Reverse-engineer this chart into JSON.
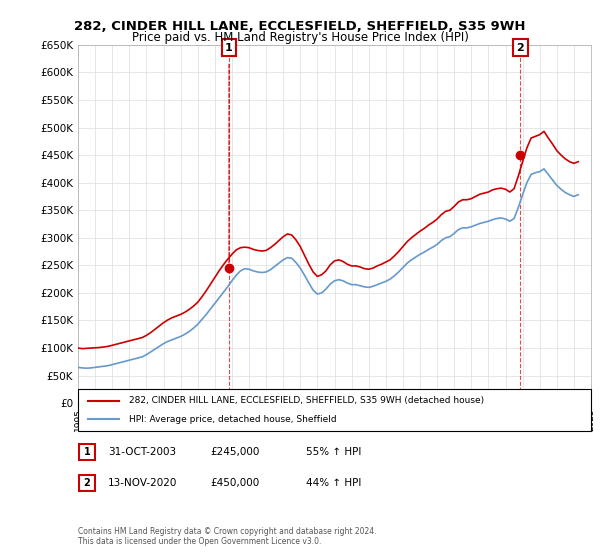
{
  "title": "282, CINDER HILL LANE, ECCLESFIELD, SHEFFIELD, S35 9WH",
  "subtitle": "Price paid vs. HM Land Registry's House Price Index (HPI)",
  "ylabel_ticks": [
    "£0",
    "£50K",
    "£100K",
    "£150K",
    "£200K",
    "£250K",
    "£300K",
    "£350K",
    "£400K",
    "£450K",
    "£500K",
    "£550K",
    "£600K",
    "£650K"
  ],
  "ytick_values": [
    0,
    50000,
    100000,
    150000,
    200000,
    250000,
    300000,
    350000,
    400000,
    450000,
    500000,
    550000,
    600000,
    650000
  ],
  "legend_line1": "282, CINDER HILL LANE, ECCLESFIELD, SHEFFIELD, S35 9WH (detached house)",
  "legend_line2": "HPI: Average price, detached house, Sheffield",
  "annotation1_label": "1",
  "annotation1_date": "31-OCT-2003",
  "annotation1_price": "£245,000",
  "annotation1_hpi": "55% ↑ HPI",
  "annotation2_label": "2",
  "annotation2_date": "13-NOV-2020",
  "annotation2_price": "£450,000",
  "annotation2_hpi": "44% ↑ HPI",
  "footer": "Contains HM Land Registry data © Crown copyright and database right 2024.\nThis data is licensed under the Open Government Licence v3.0.",
  "house_color": "#cc0000",
  "hpi_color": "#6699cc",
  "background_color": "#ffffff",
  "grid_color": "#dddddd",
  "hpi_data": {
    "years": [
      1995.0,
      1995.25,
      1995.5,
      1995.75,
      1996.0,
      1996.25,
      1996.5,
      1996.75,
      1997.0,
      1997.25,
      1997.5,
      1997.75,
      1998.0,
      1998.25,
      1998.5,
      1998.75,
      1999.0,
      1999.25,
      1999.5,
      1999.75,
      2000.0,
      2000.25,
      2000.5,
      2000.75,
      2001.0,
      2001.25,
      2001.5,
      2001.75,
      2002.0,
      2002.25,
      2002.5,
      2002.75,
      2003.0,
      2003.25,
      2003.5,
      2003.75,
      2004.0,
      2004.25,
      2004.5,
      2004.75,
      2005.0,
      2005.25,
      2005.5,
      2005.75,
      2006.0,
      2006.25,
      2006.5,
      2006.75,
      2007.0,
      2007.25,
      2007.5,
      2007.75,
      2008.0,
      2008.25,
      2008.5,
      2008.75,
      2009.0,
      2009.25,
      2009.5,
      2009.75,
      2010.0,
      2010.25,
      2010.5,
      2010.75,
      2011.0,
      2011.25,
      2011.5,
      2011.75,
      2012.0,
      2012.25,
      2012.5,
      2012.75,
      2013.0,
      2013.25,
      2013.5,
      2013.75,
      2014.0,
      2014.25,
      2014.5,
      2014.75,
      2015.0,
      2015.25,
      2015.5,
      2015.75,
      2016.0,
      2016.25,
      2016.5,
      2016.75,
      2017.0,
      2017.25,
      2017.5,
      2017.75,
      2018.0,
      2018.25,
      2018.5,
      2018.75,
      2019.0,
      2019.25,
      2019.5,
      2019.75,
      2020.0,
      2020.25,
      2020.5,
      2020.75,
      2021.0,
      2021.25,
      2021.5,
      2021.75,
      2022.0,
      2022.25,
      2022.5,
      2022.75,
      2023.0,
      2023.25,
      2023.5,
      2023.75,
      2024.0,
      2024.25
    ],
    "values": [
      65000,
      64000,
      63500,
      64000,
      65000,
      66000,
      67000,
      68000,
      70000,
      72000,
      74000,
      76000,
      78000,
      80000,
      82000,
      84000,
      88000,
      93000,
      98000,
      103000,
      108000,
      112000,
      115000,
      118000,
      121000,
      125000,
      130000,
      136000,
      143000,
      152000,
      161000,
      171000,
      181000,
      191000,
      201000,
      211000,
      222000,
      232000,
      240000,
      244000,
      243000,
      240000,
      238000,
      237000,
      238000,
      242000,
      248000,
      254000,
      260000,
      264000,
      263000,
      255000,
      245000,
      232000,
      218000,
      205000,
      198000,
      200000,
      207000,
      216000,
      222000,
      224000,
      222000,
      218000,
      215000,
      215000,
      213000,
      211000,
      210000,
      212000,
      215000,
      218000,
      221000,
      225000,
      231000,
      238000,
      246000,
      254000,
      260000,
      265000,
      270000,
      274000,
      279000,
      283000,
      288000,
      295000,
      300000,
      302000,
      308000,
      315000,
      318000,
      318000,
      320000,
      323000,
      326000,
      328000,
      330000,
      333000,
      335000,
      336000,
      334000,
      330000,
      335000,
      355000,
      378000,
      400000,
      415000,
      418000,
      420000,
      425000,
      415000,
      405000,
      395000,
      388000,
      382000,
      378000,
      375000,
      378000
    ]
  },
  "house_data": {
    "years": [
      1995.0,
      1995.25,
      1995.5,
      1995.75,
      1996.0,
      1996.25,
      1996.5,
      1996.75,
      1997.0,
      1997.25,
      1997.5,
      1997.75,
      1998.0,
      1998.25,
      1998.5,
      1998.75,
      1999.0,
      1999.25,
      1999.5,
      1999.75,
      2000.0,
      2000.25,
      2000.5,
      2000.75,
      2001.0,
      2001.25,
      2001.5,
      2001.75,
      2002.0,
      2002.25,
      2002.5,
      2002.75,
      2003.0,
      2003.25,
      2003.5,
      2003.75,
      2004.0,
      2004.25,
      2004.5,
      2004.75,
      2005.0,
      2005.25,
      2005.5,
      2005.75,
      2006.0,
      2006.25,
      2006.5,
      2006.75,
      2007.0,
      2007.25,
      2007.5,
      2007.75,
      2008.0,
      2008.25,
      2008.5,
      2008.75,
      2009.0,
      2009.25,
      2009.5,
      2009.75,
      2010.0,
      2010.25,
      2010.5,
      2010.75,
      2011.0,
      2011.25,
      2011.5,
      2011.75,
      2012.0,
      2012.25,
      2012.5,
      2012.75,
      2013.0,
      2013.25,
      2013.5,
      2013.75,
      2014.0,
      2014.25,
      2014.5,
      2014.75,
      2015.0,
      2015.25,
      2015.5,
      2015.75,
      2016.0,
      2016.25,
      2016.5,
      2016.75,
      2017.0,
      2017.25,
      2017.5,
      2017.75,
      2018.0,
      2018.25,
      2018.5,
      2018.75,
      2019.0,
      2019.25,
      2019.5,
      2019.75,
      2020.0,
      2020.25,
      2020.5,
      2020.75,
      2021.0,
      2021.25,
      2021.5,
      2021.75,
      2022.0,
      2022.25,
      2022.5,
      2022.75,
      2023.0,
      2023.25,
      2023.5,
      2023.75,
      2024.0,
      2024.25
    ],
    "values": [
      100000,
      99000,
      99500,
      100000,
      100500,
      101000,
      102000,
      103000,
      105000,
      107000,
      109000,
      111000,
      113000,
      115000,
      117000,
      119000,
      123000,
      128000,
      134000,
      140000,
      146000,
      151000,
      155000,
      158000,
      161000,
      165000,
      170000,
      176000,
      183000,
      193000,
      204000,
      216000,
      228000,
      240000,
      251000,
      261000,
      270000,
      278000,
      282000,
      283000,
      282000,
      279000,
      277000,
      276000,
      277000,
      282000,
      288000,
      295000,
      302000,
      307000,
      305000,
      296000,
      284000,
      268000,
      252000,
      238000,
      230000,
      233000,
      240000,
      251000,
      258000,
      260000,
      257000,
      252000,
      249000,
      249000,
      247000,
      244000,
      243000,
      245000,
      249000,
      252000,
      256000,
      260000,
      267000,
      275000,
      284000,
      293000,
      300000,
      306000,
      312000,
      317000,
      323000,
      328000,
      334000,
      342000,
      348000,
      350000,
      357000,
      365000,
      369000,
      369000,
      371000,
      375000,
      379000,
      381000,
      383000,
      387000,
      389000,
      390000,
      388000,
      383000,
      389000,
      412000,
      438000,
      463000,
      481000,
      484000,
      487000,
      493000,
      481000,
      470000,
      458000,
      450000,
      443000,
      438000,
      435000,
      438000
    ]
  },
  "sale1_year": 2003.833,
  "sale1_price": 245000,
  "sale2_year": 2020.875,
  "sale2_price": 450000,
  "xmin": 1995,
  "xmax": 2025,
  "ymin": 0,
  "ymax": 650000
}
